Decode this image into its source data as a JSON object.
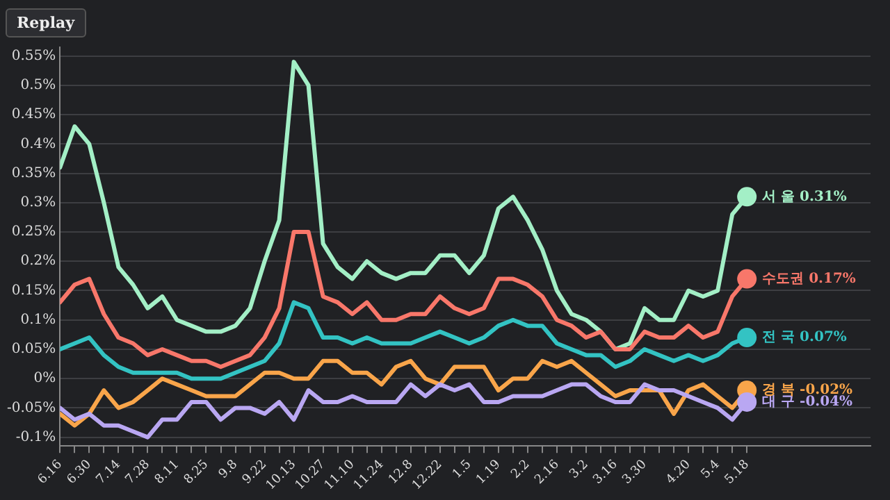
{
  "chart_data": {
    "type": "line",
    "categories": [
      "6.16",
      null,
      "6.30",
      null,
      "7.14",
      null,
      "7.28",
      null,
      "8.11",
      null,
      "8.25",
      null,
      "9.8",
      null,
      "9.22",
      null,
      "10.13",
      null,
      "10.27",
      null,
      "11.10",
      null,
      "11.24",
      null,
      "12.8",
      null,
      "12.22",
      null,
      "1.5",
      null,
      "1.19",
      null,
      "2.2",
      null,
      "2.16",
      null,
      "3.2",
      null,
      "3.16",
      null,
      "3.30",
      null,
      null,
      "4.20",
      null,
      "5.4",
      null,
      "5.18"
    ],
    "series": [
      {
        "name": "대 구",
        "color": "#b9a7f2",
        "values": [
          -0.05,
          -0.07,
          -0.06,
          -0.08,
          -0.08,
          -0.09,
          -0.1,
          -0.07,
          -0.07,
          -0.04,
          -0.04,
          -0.07,
          -0.05,
          -0.05,
          -0.06,
          -0.04,
          -0.07,
          -0.02,
          -0.04,
          -0.04,
          -0.03,
          -0.04,
          -0.04,
          -0.04,
          -0.01,
          -0.03,
          -0.01,
          -0.02,
          -0.01,
          -0.04,
          -0.04,
          -0.03,
          -0.03,
          -0.03,
          -0.02,
          -0.01,
          -0.01,
          -0.03,
          -0.04,
          -0.04,
          -0.01,
          -0.02,
          -0.02,
          -0.03,
          -0.04,
          -0.05,
          -0.07,
          -0.04
        ],
        "value_labels": [
          null,
          null,
          null,
          null,
          null,
          null,
          null,
          null,
          null,
          null,
          null,
          null,
          null,
          null,
          null,
          null,
          null,
          null,
          null,
          null,
          null,
          null,
          null,
          null,
          null,
          null,
          null,
          null,
          null,
          null,
          null,
          null,
          null,
          null,
          null,
          null,
          null,
          null,
          null,
          null,
          null,
          null,
          null,
          null,
          null,
          null,
          null,
          "-0.04%"
        ]
      },
      {
        "name": "경 북",
        "color": "#f9a54a",
        "values": [
          -0.06,
          -0.08,
          -0.06,
          -0.02,
          -0.05,
          -0.04,
          -0.02,
          0,
          -0.01,
          -0.02,
          -0.03,
          -0.03,
          -0.03,
          -0.01,
          0.01,
          0.01,
          0,
          0,
          0.03,
          0.03,
          0.01,
          0.01,
          -0.01,
          0.02,
          0.03,
          0,
          -0.01,
          0.02,
          0.02,
          0.02,
          -0.02,
          0,
          0,
          0.03,
          0.02,
          0.03,
          0.01,
          -0.01,
          -0.03,
          -0.02,
          -0.02,
          -0.02,
          -0.06,
          -0.02,
          -0.01,
          -0.03,
          -0.05,
          -0.02
        ],
        "value_labels": [
          null,
          null,
          null,
          null,
          null,
          null,
          null,
          null,
          null,
          null,
          null,
          null,
          null,
          null,
          null,
          null,
          null,
          null,
          null,
          null,
          null,
          null,
          null,
          null,
          null,
          null,
          null,
          null,
          null,
          null,
          null,
          null,
          null,
          null,
          null,
          null,
          null,
          null,
          null,
          null,
          null,
          null,
          null,
          null,
          null,
          null,
          null,
          "-0.02%"
        ]
      },
      {
        "name": "전 국",
        "color": "#33c3c3",
        "values": [
          0.05,
          0.06,
          0.07,
          0.04,
          0.02,
          0.01,
          0.01,
          0.01,
          0.01,
          0,
          0,
          0,
          0.01,
          0.02,
          0.03,
          0.06,
          0.13,
          0.12,
          0.07,
          0.07,
          0.06,
          0.07,
          0.06,
          0.06,
          0.06,
          0.07,
          0.08,
          0.07,
          0.06,
          0.07,
          0.09,
          0.1,
          0.09,
          0.09,
          0.06,
          0.05,
          0.04,
          0.04,
          0.02,
          0.03,
          0.05,
          0.04,
          0.03,
          0.04,
          0.03,
          0.04,
          0.06,
          0.07
        ],
        "value_labels": [
          null,
          null,
          null,
          null,
          null,
          null,
          null,
          null,
          null,
          null,
          null,
          null,
          null,
          null,
          null,
          null,
          null,
          null,
          null,
          null,
          null,
          null,
          null,
          null,
          null,
          null,
          null,
          null,
          null,
          null,
          null,
          null,
          null,
          null,
          null,
          null,
          null,
          null,
          null,
          null,
          null,
          null,
          null,
          null,
          null,
          null,
          null,
          "0.07%"
        ]
      },
      {
        "name": "수도권",
        "color": "#f8776a",
        "values": [
          0.13,
          0.16,
          0.17,
          0.11,
          0.07,
          0.06,
          0.04,
          0.05,
          0.04,
          0.03,
          0.03,
          0.02,
          0.03,
          0.04,
          0.07,
          0.12,
          0.25,
          0.25,
          0.14,
          0.13,
          0.11,
          0.13,
          0.1,
          0.1,
          0.11,
          0.11,
          0.14,
          0.12,
          0.11,
          0.12,
          0.17,
          0.17,
          0.16,
          0.14,
          0.1,
          0.09,
          0.07,
          0.08,
          0.05,
          0.05,
          0.08,
          0.07,
          0.07,
          0.09,
          0.07,
          0.08,
          0.14,
          0.17
        ],
        "value_labels": [
          null,
          null,
          null,
          null,
          null,
          null,
          null,
          null,
          null,
          null,
          null,
          null,
          null,
          null,
          null,
          null,
          null,
          null,
          null,
          null,
          null,
          null,
          null,
          null,
          null,
          null,
          null,
          null,
          null,
          null,
          null,
          null,
          null,
          null,
          null,
          null,
          null,
          null,
          null,
          null,
          null,
          null,
          null,
          null,
          null,
          null,
          null,
          "0.17%"
        ]
      },
      {
        "name": "서 울",
        "color": "#a3efc6",
        "values": [
          0.36,
          0.43,
          0.4,
          0.3,
          0.19,
          0.16,
          0.12,
          0.14,
          0.1,
          0.09,
          0.08,
          0.08,
          0.09,
          0.12,
          0.2,
          0.27,
          0.54,
          0.5,
          0.23,
          0.19,
          0.17,
          0.2,
          0.18,
          0.17,
          0.18,
          0.18,
          0.21,
          0.21,
          0.18,
          0.21,
          0.29,
          0.31,
          0.27,
          0.22,
          0.15,
          0.11,
          0.1,
          0.08,
          0.05,
          0.06,
          0.12,
          0.1,
          0.1,
          0.15,
          0.14,
          0.15,
          0.28,
          0.31
        ],
        "value_labels": [
          null,
          null,
          null,
          null,
          null,
          null,
          null,
          null,
          null,
          null,
          null,
          null,
          null,
          null,
          null,
          null,
          null,
          null,
          null,
          null,
          null,
          null,
          null,
          null,
          null,
          null,
          null,
          null,
          null,
          null,
          null,
          null,
          null,
          null,
          null,
          null,
          null,
          null,
          null,
          null,
          null,
          null,
          null,
          null,
          null,
          null,
          null,
          "0.31%"
        ]
      }
    ],
    "ylim": [
      -0.115,
      0.565
    ],
    "yticks": [
      {
        "value": -0.1,
        "label": "-0.1%"
      },
      {
        "value": -0.05,
        "label": "-0.05%"
      },
      {
        "value": 0,
        "label": "0%"
      },
      {
        "value": 0.05,
        "label": "0.05%"
      },
      {
        "value": 0.1,
        "label": "0.1%"
      },
      {
        "value": 0.15,
        "label": "0.15%"
      },
      {
        "value": 0.2,
        "label": "0.2%"
      },
      {
        "value": 0.25,
        "label": "0.25%"
      },
      {
        "value": 0.3,
        "label": "0.3%"
      },
      {
        "value": 0.35,
        "label": "0.35%"
      },
      {
        "value": 0.4,
        "label": "0.4%"
      },
      {
        "value": 0.45,
        "label": "0.45%"
      },
      {
        "value": 0.5,
        "label": "0.5%"
      },
      {
        "value": 0.55,
        "label": "0.55%"
      }
    ],
    "grid": "y",
    "legend": false,
    "marker": "none",
    "line_style": "solid",
    "annotations": [
      "Replay"
    ]
  }
}
